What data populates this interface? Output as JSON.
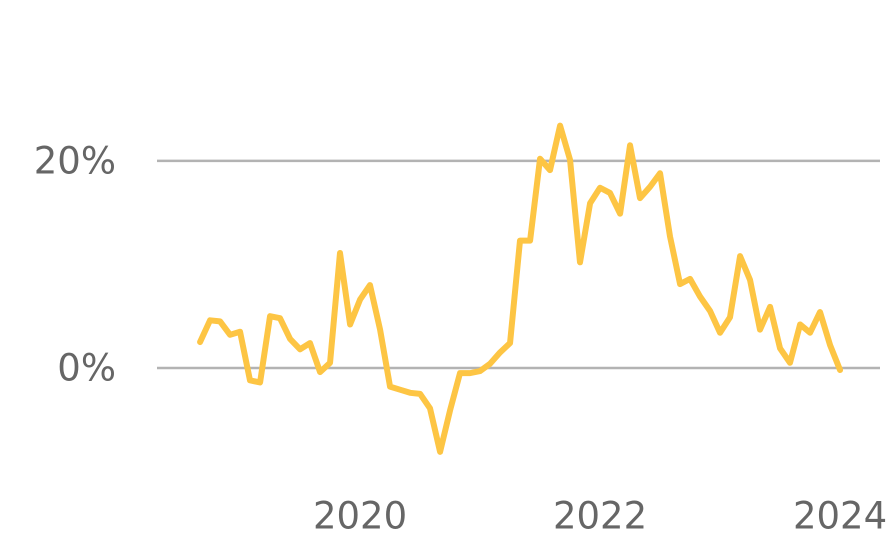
{
  "chart_data": {
    "type": "line",
    "x": [
      2018.667,
      2018.75,
      2018.833,
      2018.917,
      2019,
      2019.083,
      2019.167,
      2019.25,
      2019.333,
      2019.417,
      2019.5,
      2019.583,
      2019.667,
      2019.75,
      2019.833,
      2019.917,
      2020,
      2020.083,
      2020.167,
      2020.25,
      2020.333,
      2020.417,
      2020.5,
      2020.583,
      2020.667,
      2020.75,
      2020.833,
      2020.917,
      2021,
      2021.083,
      2021.167,
      2021.25,
      2021.333,
      2021.417,
      2021.5,
      2021.583,
      2021.667,
      2021.75,
      2021.833,
      2021.917,
      2022,
      2022.083,
      2022.167,
      2022.25,
      2022.333,
      2022.417,
      2022.5,
      2022.583,
      2022.667,
      2022.75,
      2022.833,
      2022.917,
      2023,
      2023.083,
      2023.167,
      2023.25,
      2023.333,
      2023.417,
      2023.5,
      2023.583,
      2023.667,
      2023.75,
      2023.833,
      2023.917,
      2024
    ],
    "series": [
      {
        "color": "#fdc544",
        "values": [
          2.5,
          4.6,
          4.5,
          3.2,
          3.5,
          -1.2,
          -1.4,
          5.0,
          4.8,
          2.8,
          1.8,
          2.4,
          -0.4,
          0.5,
          11.1,
          4.2,
          6.6,
          8.0,
          3.7,
          -1.8,
          -2.1,
          -2.4,
          -2.5,
          -3.9,
          -8.1,
          -4.1,
          -0.5,
          -0.5,
          -0.3,
          0.4,
          1.5,
          2.4,
          12.3,
          12.3,
          20.2,
          19.1,
          23.4,
          20.1,
          10.2,
          15.9,
          17.4,
          16.9,
          14.9,
          21.5,
          16.4,
          17.5,
          18.8,
          12.7,
          8.1,
          8.6,
          6.9,
          5.5,
          3.4,
          4.9,
          10.8,
          8.5,
          3.7,
          5.9,
          1.9,
          0.5,
          4.2,
          3.4,
          5.4,
          2.2,
          -0.2
        ]
      }
    ],
    "xlim": [
      2018.308,
      2024.333
    ],
    "xticks": [
      2020,
      2022,
      2024
    ],
    "ylim": [
      -10,
      28
    ],
    "yticks": [
      {
        "value": 0,
        "label": "0%"
      },
      {
        "value": 20,
        "label": "20%"
      }
    ],
    "grid": true
  }
}
